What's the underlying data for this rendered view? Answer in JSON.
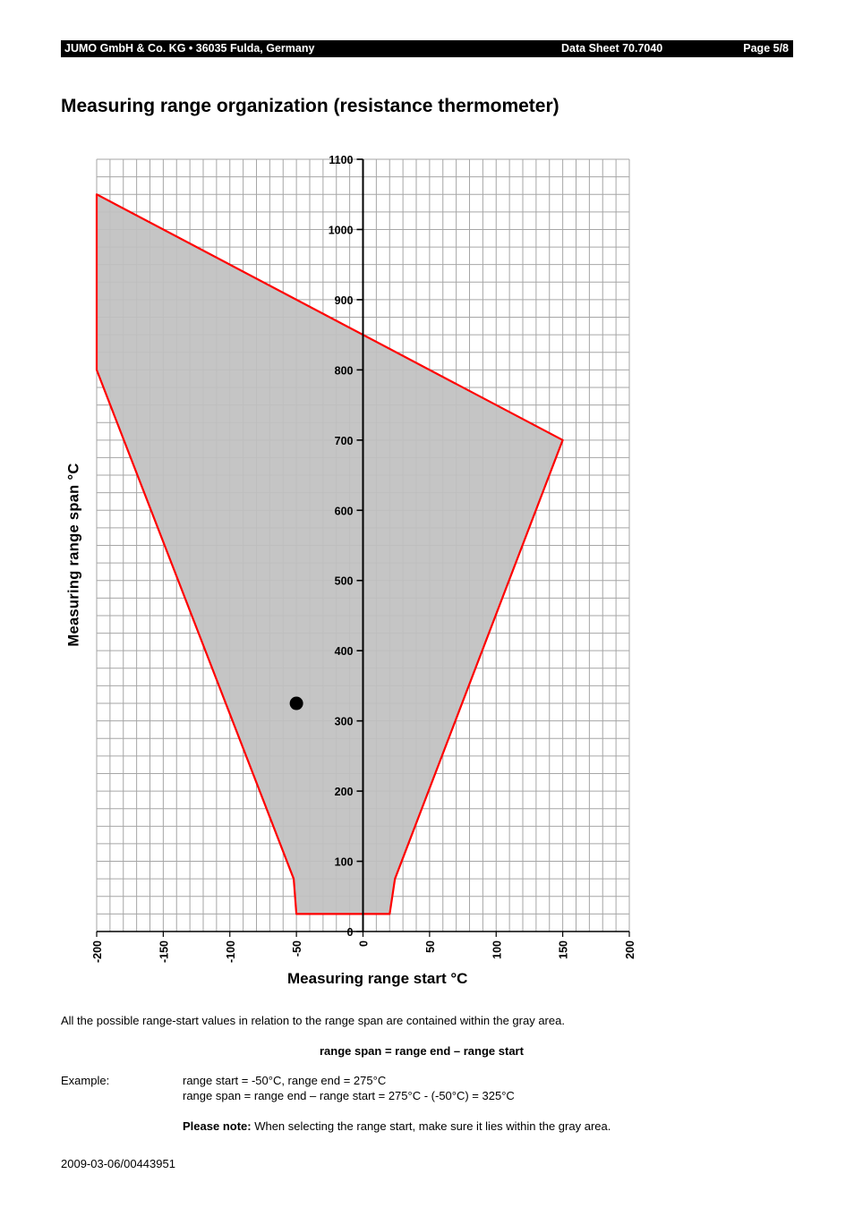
{
  "header": {
    "company": "JUMO GmbH & Co. KG • 36035 Fulda, Germany",
    "sheet": "Data Sheet 70.7040",
    "page": "Page 5/8"
  },
  "title": "Measuring range organization (resistance thermometer)",
  "chart_data": {
    "type": "area",
    "xlabel": "Measuring range start °C",
    "ylabel": "Measuring range span °C",
    "xlim": [
      -200,
      200
    ],
    "ylim": [
      0,
      1100
    ],
    "grid": true,
    "x_ticks": [
      -200,
      -150,
      -100,
      -50,
      0,
      50,
      100,
      150,
      200
    ],
    "y_ticks": [
      0,
      100,
      200,
      300,
      400,
      500,
      600,
      700,
      800,
      900,
      1000,
      1100
    ],
    "region_boundary": [
      {
        "x": -200,
        "y": 1050
      },
      {
        "x": 150,
        "y": 700
      },
      {
        "x": 24,
        "y": 75
      },
      {
        "x": 20,
        "y": 25
      },
      {
        "x": -50,
        "y": 25
      },
      {
        "x": -52,
        "y": 75
      },
      {
        "x": -200,
        "y": 800
      }
    ],
    "example_point": {
      "x": -50,
      "y": 325
    },
    "colors": {
      "fill": "#c0c0c0",
      "boundary": "#ff0000",
      "grid": "#a6a6a6",
      "axis": "#000000",
      "point": "#000000"
    }
  },
  "notes": {
    "intro": "All the possible range-start values in relation to the range span are contained within the gray area.",
    "formula": "range span = range end – range start",
    "example_label": "Example:",
    "example_line1": "range start = -50°C, range end = 275°C",
    "example_line2": "range span = range end – range start = 275°C - (-50°C) = 325°C",
    "please_note_label": "Please note:",
    "please_note_text": " When selecting the range start, make sure it lies within the gray area."
  },
  "doc_id": "2009-03-06/00443951"
}
